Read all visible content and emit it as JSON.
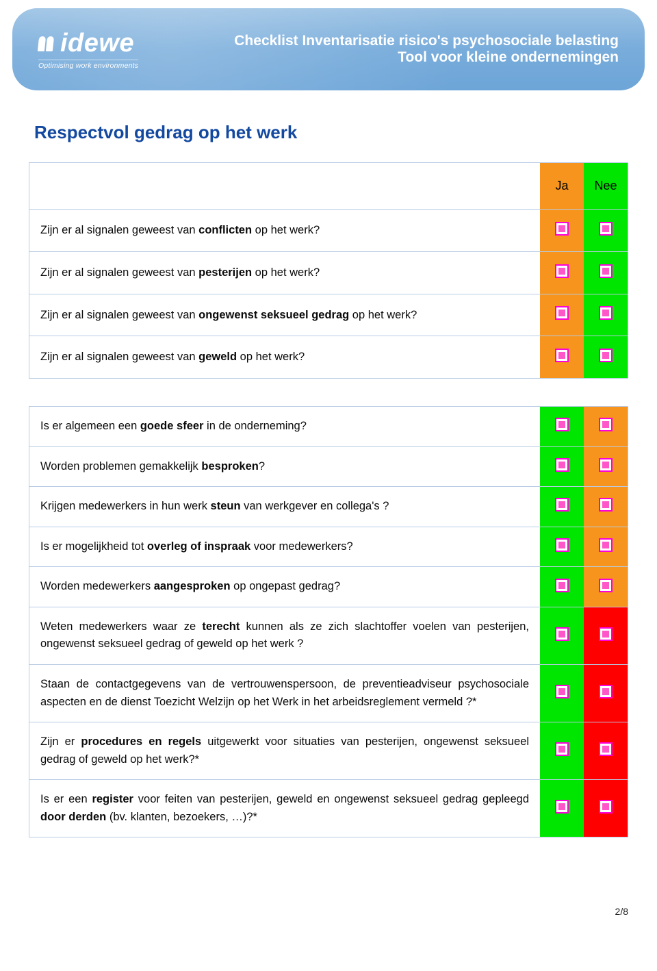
{
  "colors": {
    "banner_gradient_top": "#9bc2e4",
    "banner_gradient_bottom": "#6da5d8",
    "title_blue": "#1449a0",
    "border_blue": "#b8cbe4",
    "orange": "#f7941d",
    "green": "#00e600",
    "red": "#ff0000",
    "checkbox_border": "#ff00dd",
    "checkbox_fill": "#ff56c9"
  },
  "header": {
    "logo_name": "idewe",
    "logo_tagline": "Optimising work environments",
    "title_line1": "Checklist Inventarisatie risico's psychosociale belasting",
    "title_line2": "Tool voor kleine ondernemingen"
  },
  "section_title": "Respectvol gedrag op het werk",
  "table1": {
    "head_ja": "Ja",
    "head_nee": "Nee",
    "ja_bg": "orange",
    "nee_bg": "green",
    "rows": [
      {
        "html": "Zijn er al signalen geweest van <b>conflicten</b> op het werk?"
      },
      {
        "html": "Zijn er al signalen geweest van <b>pesterijen</b> op het werk?"
      },
      {
        "html": "Zijn er al signalen geweest van <b>ongewenst seksueel gedrag</b> op het werk?"
      },
      {
        "html": "Zijn er al signalen geweest van <b>geweld</b> op het werk?"
      }
    ]
  },
  "table2": {
    "rows": [
      {
        "html": "Is er algemeen een <b>goede sfeer</b> in de onderneming?",
        "ja_bg": "green",
        "nee_bg": "orange"
      },
      {
        "html": "Worden problemen gemakkelijk <b>besproken</b>?",
        "ja_bg": "green",
        "nee_bg": "orange"
      },
      {
        "html": "Krijgen medewerkers in hun werk <b>steun</b> van werkgever en collega's ?",
        "ja_bg": "green",
        "nee_bg": "orange"
      },
      {
        "html": "Is er mogelijkheid tot <b>overleg of inspraak</b> voor medewerkers?",
        "ja_bg": "green",
        "nee_bg": "orange"
      },
      {
        "html": "Worden medewerkers <b>aangesproken</b> op ongepast gedrag?",
        "ja_bg": "green",
        "nee_bg": "orange"
      },
      {
        "html": "Weten medewerkers waar ze <b>terecht</b> kunnen als ze zich slachtoffer voelen van pesterijen, ongewenst seksueel gedrag of geweld op het werk ?",
        "ja_bg": "green",
        "nee_bg": "red"
      },
      {
        "html": "Staan de contactgegevens van de vertrouwenspersoon, de preventieadviseur psychosociale aspecten en de dienst Toezicht Welzijn op het Werk in het arbeidsreglement vermeld ?*",
        "ja_bg": "green",
        "nee_bg": "red"
      },
      {
        "html": "Zijn er <b>procedures en regels</b> uitgewerkt voor situaties van pesterijen, ongewenst seksueel gedrag of geweld op het werk?*",
        "ja_bg": "green",
        "nee_bg": "red"
      },
      {
        "html": "Is er een <b>register</b> voor feiten van pesterijen, geweld en ongewenst seksueel gedrag gepleegd <b>door derden</b> (bv. klanten, bezoekers, …)?*",
        "ja_bg": "green",
        "nee_bg": "red"
      }
    ]
  },
  "page_number": "2/8"
}
